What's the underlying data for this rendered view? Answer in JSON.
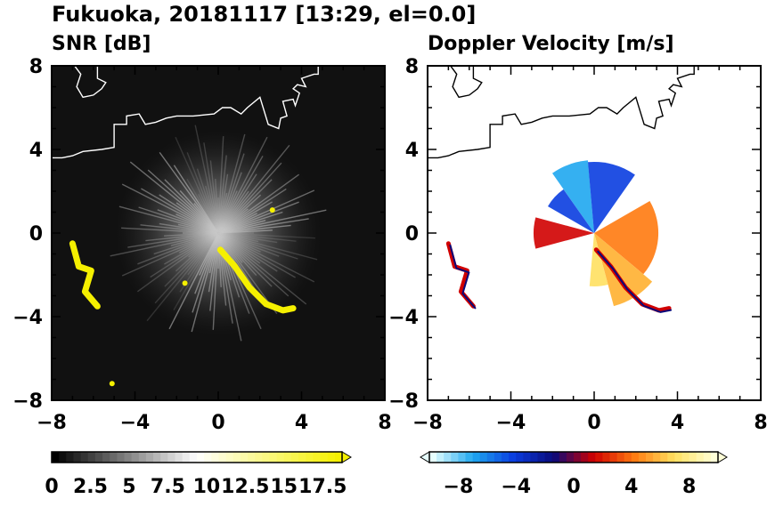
{
  "figure": {
    "title": "Fukuoka, 20181117 [13:29, el=0.0]"
  },
  "chart_data": [
    {
      "type": "heatmap",
      "title": "SNR [dB]",
      "xlim": [
        -8,
        8
      ],
      "ylim": [
        -8,
        8
      ],
      "x_ticks": [
        -8,
        -4,
        0,
        4,
        8
      ],
      "y_ticks": [
        -8,
        -4,
        0,
        4,
        8
      ],
      "background": "#111111",
      "coastline_color": "#ffffff",
      "echo_color": "#f5f000",
      "echoes": [
        {
          "name": "west-cluster",
          "points": [
            [
              -7.0,
              -0.5
            ],
            [
              -6.7,
              -1.6
            ],
            [
              -6.1,
              -1.8
            ],
            [
              -6.4,
              -2.8
            ],
            [
              -5.8,
              -3.5
            ]
          ]
        },
        {
          "name": "southeast-band",
          "points": [
            [
              0.1,
              -0.8
            ],
            [
              0.8,
              -1.6
            ],
            [
              1.5,
              -2.6
            ],
            [
              2.3,
              -3.4
            ],
            [
              3.1,
              -3.7
            ],
            [
              3.6,
              -3.6
            ]
          ]
        },
        {
          "name": "small-cell-east",
          "points": [
            [
              2.6,
              1.1
            ]
          ]
        },
        {
          "name": "small-cell-south",
          "points": [
            [
              -1.6,
              -2.4
            ]
          ]
        },
        {
          "name": "small-cell-far-south",
          "points": [
            [
              -5.1,
              -7.2
            ]
          ]
        }
      ],
      "colorbar": {
        "ticks": [
          "0",
          "2.5",
          "5",
          "7.5",
          "10",
          "12.5",
          "15",
          "17.5"
        ],
        "min": 0,
        "max": 18.75,
        "extend": "max",
        "colors": [
          "#000000",
          "#ffffff",
          "#f5f000"
        ]
      }
    },
    {
      "type": "heatmap",
      "title": "Doppler Velocity [m/s]",
      "xlim": [
        -8,
        8
      ],
      "ylim": [
        -8,
        8
      ],
      "x_ticks": [
        -8,
        -4,
        0,
        4,
        8
      ],
      "y_ticks": [
        -8,
        -4,
        0,
        4,
        8
      ],
      "background": "#ffffff",
      "coastline_color": "#000000",
      "colorbar": {
        "ticks": [
          "-8",
          "-4",
          "0",
          "4",
          "8"
        ],
        "min": -10,
        "max": 10,
        "extend": "both",
        "colors": [
          "#e6ffff",
          "#1fa7ef",
          "#0a3de0",
          "#0a0a7a",
          "#d00000",
          "#ff7a10",
          "#ffe060",
          "#ffffd8"
        ]
      }
    }
  ],
  "coastline": [
    [
      -8.0,
      3.6
    ],
    [
      -7.5,
      3.6
    ],
    [
      -7.0,
      3.7
    ],
    [
      -6.5,
      3.9
    ],
    [
      -5.6,
      4.0
    ],
    [
      -5.0,
      4.1
    ],
    [
      -5.0,
      5.2
    ],
    [
      -4.4,
      5.2
    ],
    [
      -4.4,
      5.6
    ],
    [
      -3.8,
      5.7
    ],
    [
      -3.5,
      5.2
    ],
    [
      -3.0,
      5.3
    ],
    [
      -2.5,
      5.5
    ],
    [
      -2.0,
      5.6
    ],
    [
      -1.2,
      5.6
    ],
    [
      -0.2,
      5.7
    ],
    [
      0.2,
      6.0
    ],
    [
      0.6,
      6.0
    ],
    [
      1.1,
      5.7
    ],
    [
      1.4,
      6.0
    ],
    [
      2.0,
      6.5
    ],
    [
      2.4,
      5.2
    ],
    [
      2.9,
      5.0
    ],
    [
      3.0,
      5.5
    ],
    [
      3.3,
      5.6
    ],
    [
      3.1,
      6.3
    ],
    [
      3.6,
      6.4
    ],
    [
      3.7,
      6.1
    ],
    [
      3.9,
      6.7
    ],
    [
      3.6,
      6.9
    ],
    [
      3.8,
      7.1
    ],
    [
      4.2,
      7.0
    ],
    [
      4.0,
      7.4
    ],
    [
      4.6,
      7.6
    ],
    [
      4.8,
      7.6
    ],
    [
      4.8,
      8.0
    ]
  ],
  "coastline_north": [
    [
      -6.9,
      8.0
    ],
    [
      -6.6,
      7.6
    ],
    [
      -6.8,
      7.0
    ],
    [
      -6.5,
      6.5
    ],
    [
      -6.0,
      6.6
    ],
    [
      -5.6,
      6.9
    ],
    [
      -5.4,
      7.2
    ],
    [
      -5.8,
      7.4
    ],
    [
      -5.8,
      8.0
    ]
  ]
}
